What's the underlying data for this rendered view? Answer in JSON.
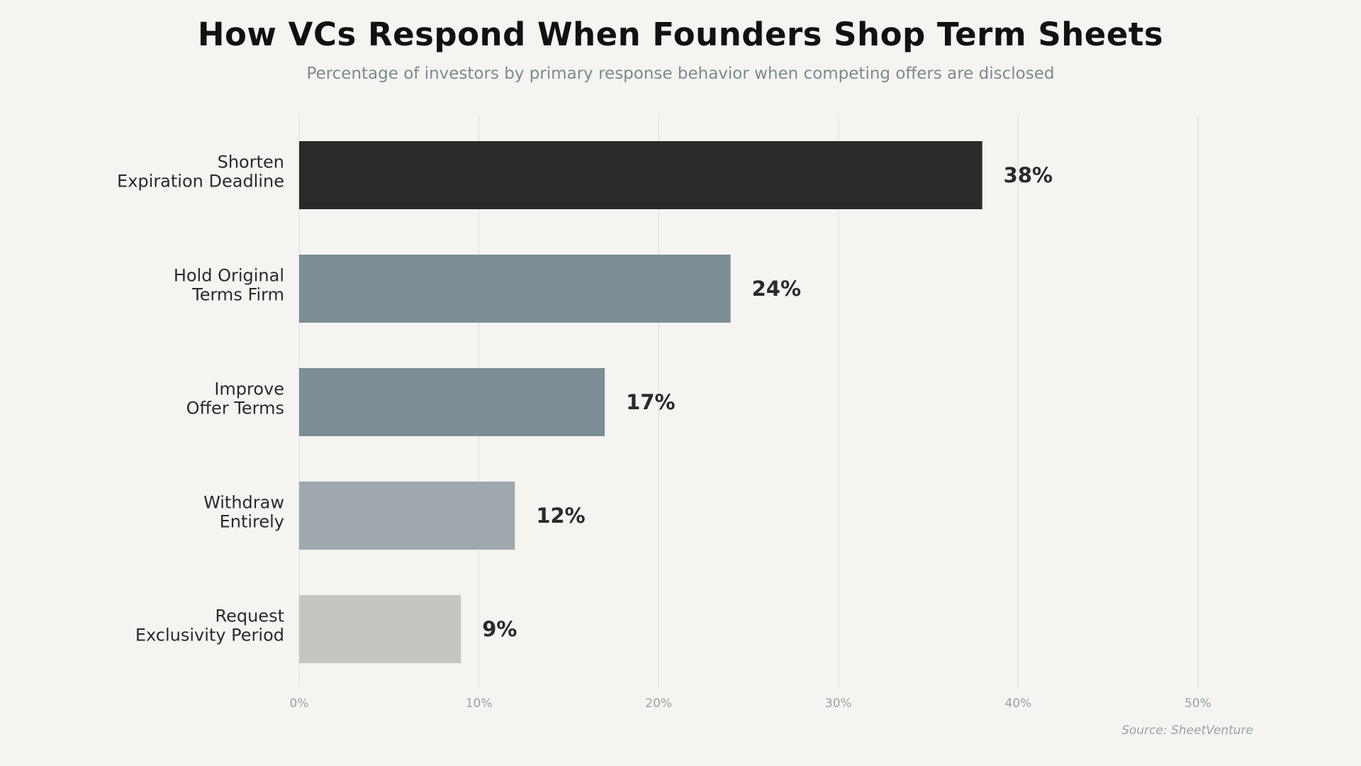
{
  "chart_data": {
    "type": "bar",
    "orientation": "horizontal",
    "title": "How VCs Respond When Founders Shop Term Sheets",
    "subtitle": "Percentage of investors by primary response behavior when competing offers are disclosed",
    "categories": [
      [
        "Shorten",
        "Expiration Deadline"
      ],
      [
        "Hold Original",
        "Terms Firm"
      ],
      [
        "Improve",
        "Offer Terms"
      ],
      [
        "Withdraw",
        "Entirely"
      ],
      [
        "Request",
        "Exclusivity Period"
      ]
    ],
    "values": [
      38,
      24,
      17,
      12,
      9
    ],
    "value_labels": [
      "38%",
      "24%",
      "17%",
      "12%",
      "9%"
    ],
    "bar_colors": [
      "#2a2a2a",
      "#7b8e95",
      "#7b8e95",
      "#9ea8ad",
      "#c6c5c0"
    ],
    "xlim": [
      0,
      50
    ],
    "xticks": [
      0,
      10,
      20,
      30,
      40,
      50
    ],
    "xtick_labels": [
      "0%",
      "10%",
      "20%",
      "30%",
      "40%",
      "50%"
    ],
    "grid": "vertical",
    "source": "Source: SheetVenture"
  }
}
